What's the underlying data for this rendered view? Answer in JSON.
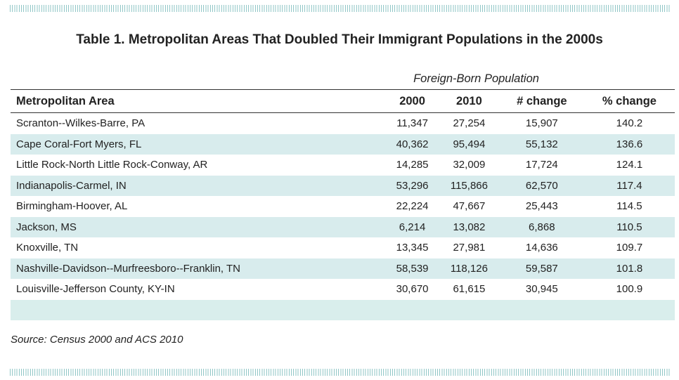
{
  "title": "Table 1. Metropolitan Areas That Doubled Their Immigrant Populations in the 2000s",
  "group_header": "Foreign-Born Population",
  "columns": [
    "Metropolitan Area",
    "2000",
    "2010",
    "# change",
    "% change"
  ],
  "rows": [
    [
      "Scranton--Wilkes-Barre, PA",
      "11,347",
      "27,254",
      "15,907",
      "140.2"
    ],
    [
      "Cape Coral-Fort Myers, FL",
      "40,362",
      "95,494",
      "55,132",
      "136.6"
    ],
    [
      "Little Rock-North Little Rock-Conway, AR",
      "14,285",
      "32,009",
      "17,724",
      "124.1"
    ],
    [
      "Indianapolis-Carmel, IN",
      "53,296",
      "115,866",
      "62,570",
      "117.4"
    ],
    [
      "Birmingham-Hoover, AL",
      "22,224",
      "47,667",
      "25,443",
      "114.5"
    ],
    [
      "Jackson, MS",
      "6,214",
      "13,082",
      "6,868",
      "110.5"
    ],
    [
      "Knoxville, TN",
      "13,345",
      "27,981",
      "14,636",
      "109.7"
    ],
    [
      "Nashville-Davidson--Murfreesboro--Franklin, TN",
      "58,539",
      "118,126",
      "59,587",
      "101.8"
    ],
    [
      "Louisville-Jefferson County, KY-IN",
      "30,670",
      "61,615",
      "30,945",
      "100.9"
    ]
  ],
  "source": "Source: Census 2000 and ACS 2010",
  "colors": {
    "row_alt": "#d8eced",
    "stripe": "#8fc6c6"
  }
}
